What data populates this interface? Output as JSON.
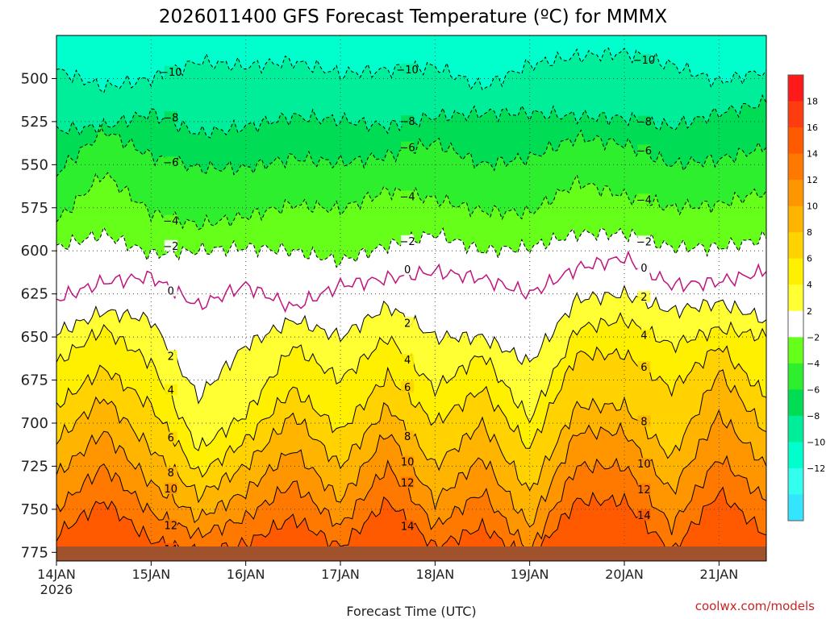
{
  "chart_data": {
    "type": "contour",
    "title": "2026011400 GFS Forecast Temperature (ºC) for MMMX",
    "xlabel": "Forecast Time (UTC)",
    "ylabel": "",
    "y_axis": "pressure (hPa), inverted",
    "ylim": [
      475,
      780
    ],
    "yticks": [
      500,
      525,
      550,
      575,
      600,
      625,
      650,
      675,
      700,
      725,
      750,
      775
    ],
    "xlim": [
      "2026-01-14T00:00",
      "2026-01-21T12:00"
    ],
    "xticks": [
      {
        "label": "14JAN",
        "sub": "2026",
        "date": "2026-01-14"
      },
      {
        "label": "15JAN",
        "sub": "",
        "date": "2026-01-15"
      },
      {
        "label": "16JAN",
        "sub": "",
        "date": "2026-01-16"
      },
      {
        "label": "17JAN",
        "sub": "",
        "date": "2026-01-17"
      },
      {
        "label": "18JAN",
        "sub": "",
        "date": "2026-01-18"
      },
      {
        "label": "19JAN",
        "sub": "",
        "date": "2026-01-19"
      },
      {
        "label": "20JAN",
        "sub": "",
        "date": "2026-01-20"
      },
      {
        "label": "21JAN",
        "sub": "",
        "date": "2026-01-21"
      }
    ],
    "grid": true,
    "colorbar": {
      "placement": "right",
      "labels": [
        "18",
        "16",
        "14",
        "12",
        "10",
        "8",
        "6",
        "4",
        "2",
        "−2",
        "−4",
        "−6",
        "−8",
        "−10",
        "−12"
      ],
      "colors": [
        "#ff1a1a",
        "#ff3c0f",
        "#ff5a00",
        "#ff7800",
        "#ff9600",
        "#ffb400",
        "#ffd200",
        "#fff000",
        "#ffff33",
        "#ffffff",
        "#66ff1a",
        "#2eef2e",
        "#00dd55",
        "#00ee99",
        "#00ffcc",
        "#33ffee",
        "#33e5ff"
      ]
    },
    "contours": [
      {
        "level": -10,
        "times_days": [
          0,
          0.5,
          1,
          1.5,
          2,
          2.5,
          3,
          3.5,
          4,
          4.5,
          5,
          5.5,
          6,
          6.5,
          7,
          7.5
        ],
        "pressure": [
          495,
          505,
          500,
          490,
          493,
          490,
          497,
          495,
          493,
          505,
          492,
          487,
          485,
          492,
          502,
          495
        ]
      },
      {
        "level": -8,
        "times_days": [
          0,
          0.5,
          1,
          1.5,
          2,
          2.5,
          3,
          3.5,
          4,
          4.5,
          5,
          5.5,
          6,
          6.5,
          7,
          7.5
        ],
        "pressure": [
          530,
          528,
          520,
          532,
          528,
          522,
          524,
          528,
          522,
          520,
          520,
          522,
          523,
          528,
          520,
          514
        ]
      },
      {
        "level": -6,
        "times_days": [
          0,
          0.5,
          1,
          1.5,
          2,
          2.5,
          3,
          3.5,
          4,
          4.5,
          5,
          5.5,
          6,
          6.5,
          7,
          7.5
        ],
        "pressure": [
          555,
          530,
          545,
          552,
          552,
          546,
          549,
          545,
          537,
          550,
          546,
          534,
          538,
          550,
          547,
          540
        ]
      },
      {
        "level": -4,
        "times_days": [
          0,
          0.5,
          1,
          1.5,
          2,
          2.5,
          3,
          3.5,
          4,
          4.5,
          5,
          5.5,
          6,
          6.5,
          7,
          7.5
        ],
        "pressure": [
          583,
          555,
          578,
          585,
          580,
          573,
          576,
          565,
          570,
          577,
          578,
          560,
          568,
          575,
          573,
          565
        ]
      },
      {
        "level": -2,
        "times_days": [
          0,
          0.5,
          1,
          1.5,
          2,
          2.5,
          3,
          3.5,
          4,
          4.5,
          5,
          5.5,
          6,
          6.5,
          7,
          7.5
        ],
        "pressure": [
          598,
          590,
          602,
          600,
          598,
          600,
          606,
          597,
          590,
          600,
          598,
          590,
          590,
          598,
          598,
          593
        ]
      },
      {
        "level": 0,
        "times_days": [
          0,
          0.5,
          1,
          1.5,
          2,
          2.5,
          3,
          3.5,
          4,
          4.5,
          5,
          5.5,
          6,
          6.5,
          7,
          7.5
        ],
        "pressure": [
          628,
          618,
          615,
          632,
          620,
          633,
          620,
          616,
          612,
          616,
          625,
          610,
          604,
          620,
          618,
          612
        ]
      },
      {
        "level": 2,
        "times_days": [
          0,
          0.5,
          1,
          1.5,
          2,
          2.5,
          3,
          3.5,
          4,
          4.5,
          5,
          5.5,
          6,
          6.5,
          7,
          7.5
        ],
        "pressure": [
          648,
          635,
          640,
          685,
          655,
          640,
          650,
          632,
          650,
          650,
          665,
          628,
          625,
          635,
          630,
          640
        ]
      },
      {
        "level": 4,
        "times_days": [
          0,
          0.5,
          1,
          1.5,
          2,
          2.5,
          3,
          3.5,
          4,
          4.5,
          5,
          5.5,
          6,
          6.5,
          7,
          7.5
        ],
        "pressure": [
          665,
          645,
          665,
          715,
          695,
          655,
          675,
          650,
          680,
          660,
          698,
          645,
          640,
          655,
          645,
          650
        ]
      },
      {
        "level": 6,
        "times_days": [
          0,
          0.5,
          1,
          1.5,
          2,
          2.5,
          3,
          3.5,
          4,
          4.5,
          5,
          5.5,
          6,
          6.5,
          7,
          7.5
        ],
        "pressure": [
          690,
          668,
          690,
          730,
          710,
          680,
          705,
          672,
          700,
          680,
          715,
          660,
          660,
          680,
          655,
          685
        ]
      },
      {
        "level": 8,
        "times_days": [
          0,
          0.5,
          1,
          1.5,
          2,
          2.5,
          3,
          3.5,
          4,
          4.5,
          5,
          5.5,
          6,
          6.5,
          7,
          7.5
        ],
        "pressure": [
          710,
          685,
          715,
          742,
          725,
          695,
          725,
          690,
          725,
          700,
          740,
          690,
          690,
          720,
          670,
          705
        ]
      },
      {
        "level": 10,
        "times_days": [
          0,
          0.5,
          1,
          1.5,
          2,
          2.5,
          3,
          3.5,
          4,
          4.5,
          5,
          5.5,
          6,
          6.5,
          7,
          7.5
        ],
        "pressure": [
          730,
          705,
          735,
          755,
          740,
          715,
          745,
          705,
          745,
          720,
          760,
          705,
          705,
          740,
          695,
          725
        ]
      },
      {
        "level": 12,
        "times_days": [
          0,
          0.5,
          1,
          1.5,
          2,
          2.5,
          3,
          3.5,
          4,
          4.5,
          5,
          5.5,
          6,
          6.5,
          7,
          7.5
        ],
        "pressure": [
          750,
          725,
          752,
          765,
          755,
          735,
          760,
          725,
          760,
          740,
          775,
          725,
          725,
          760,
          720,
          745
        ]
      },
      {
        "level": 14,
        "times_days": [
          0,
          0.5,
          1,
          1.5,
          2,
          2.5,
          3,
          3.5,
          4,
          4.5,
          5,
          5.5,
          6,
          6.5,
          7,
          7.5
        ],
        "pressure": [
          765,
          745,
          768,
          775,
          770,
          755,
          772,
          745,
          772,
          760,
          780,
          745,
          745,
          775,
          740,
          765
        ]
      }
    ],
    "credit": "coolwx.com/models"
  }
}
